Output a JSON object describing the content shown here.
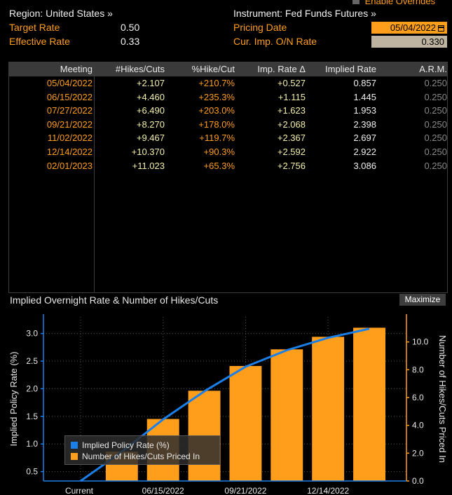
{
  "header": {
    "region_label": "Region: United States »",
    "instrument_label": "Instrument: Fed Funds Futures »",
    "target_rate_label": "Target Rate",
    "target_rate_value": "0.50",
    "effective_rate_label": "Effective Rate",
    "effective_rate_value": "0.33",
    "pricing_date_label": "Pricing Date",
    "pricing_date_value": "05/04/2022",
    "cur_imp_label": "Cur. Imp. O/N Rate",
    "cur_imp_value": "0.330",
    "enable_overrides_label": "Enable Overrides"
  },
  "table": {
    "headers": [
      "Meeting",
      "#Hikes/Cuts",
      "%Hike/Cut",
      "Imp. Rate Δ",
      "Implied Rate",
      "A.R.M."
    ],
    "rows": [
      [
        "05/04/2022",
        "+2.107",
        "+210.7%",
        "+0.527",
        "0.857",
        "0.250"
      ],
      [
        "06/15/2022",
        "+4.460",
        "+235.3%",
        "+1.115",
        "1.445",
        "0.250"
      ],
      [
        "07/27/2022",
        "+6.490",
        "+203.0%",
        "+1.623",
        "1.953",
        "0.250"
      ],
      [
        "09/21/2022",
        "+8.270",
        "+178.0%",
        "+2.068",
        "2.398",
        "0.250"
      ],
      [
        "11/02/2022",
        "+9.467",
        "+119.7%",
        "+2.367",
        "2.697",
        "0.250"
      ],
      [
        "12/14/2022",
        "+10.370",
        "+90.3%",
        "+2.592",
        "2.922",
        "0.250"
      ],
      [
        "02/01/2023",
        "+11.023",
        "+65.3%",
        "+2.756",
        "3.086",
        "0.250"
      ]
    ]
  },
  "chart_panel": {
    "title": "Implied Overnight Rate & Number of Hikes/Cuts",
    "maximize_label": "Maximize"
  },
  "chart_data": {
    "type": "bar",
    "x_categories": [
      "Current",
      "05/04/2022",
      "06/15/2022",
      "07/27/2022",
      "09/21/2022",
      "11/02/2022",
      "12/14/2022",
      "02/01/2023"
    ],
    "x_tick_labels": [
      "Current",
      "06/15/2022",
      "09/21/2022",
      "12/14/2022"
    ],
    "series": [
      {
        "name": "Implied Policy Rate (%)",
        "kind": "line",
        "axis": "left",
        "color": "#1a7fe8",
        "values": [
          0.33,
          0.857,
          1.445,
          1.953,
          2.398,
          2.697,
          2.922,
          3.086
        ]
      },
      {
        "name": "Number of Hikes/Cuts Priced In",
        "kind": "bar",
        "axis": "right",
        "color": "#ff9e1b",
        "values": [
          0,
          2.107,
          4.46,
          6.49,
          8.27,
          9.467,
          10.37,
          11.023
        ]
      }
    ],
    "ylabel_left": "Implied Policy Rate (%)",
    "ylabel_right": "Number of Hikes/Cuts Priced In",
    "yticks_left": [
      "0.5",
      "1.0",
      "1.5",
      "2.0",
      "2.5",
      "3.0"
    ],
    "yticks_right": [
      "0.0",
      "2.0",
      "4.0",
      "6.0",
      "8.0",
      "10.0"
    ],
    "ylim_left": [
      0.33,
      3.3
    ],
    "ylim_right": [
      0,
      11.8
    ],
    "grid": true,
    "legend_position": "bottom-left"
  }
}
